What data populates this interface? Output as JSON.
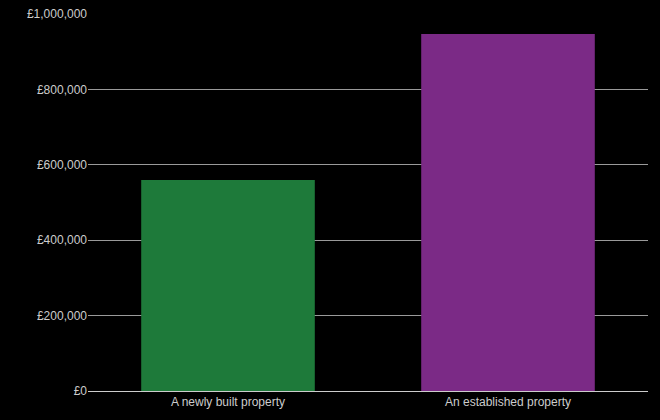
{
  "chart_data": {
    "type": "bar",
    "categories": [
      "A newly built property",
      "An established property"
    ],
    "values": [
      560000,
      947000
    ],
    "colors": [
      "#1e7a3a",
      "#7b2a86"
    ],
    "ylim": [
      0,
      1000000
    ],
    "yticks": [
      {
        "value": 0,
        "label": "£0"
      },
      {
        "value": 200000,
        "label": "£200,000"
      },
      {
        "value": 400000,
        "label": "£400,000"
      },
      {
        "value": 600000,
        "label": "£600,000"
      },
      {
        "value": 800000,
        "label": "£800,000"
      },
      {
        "value": 1000000,
        "label": "£1,000,000"
      }
    ],
    "grid": true
  }
}
